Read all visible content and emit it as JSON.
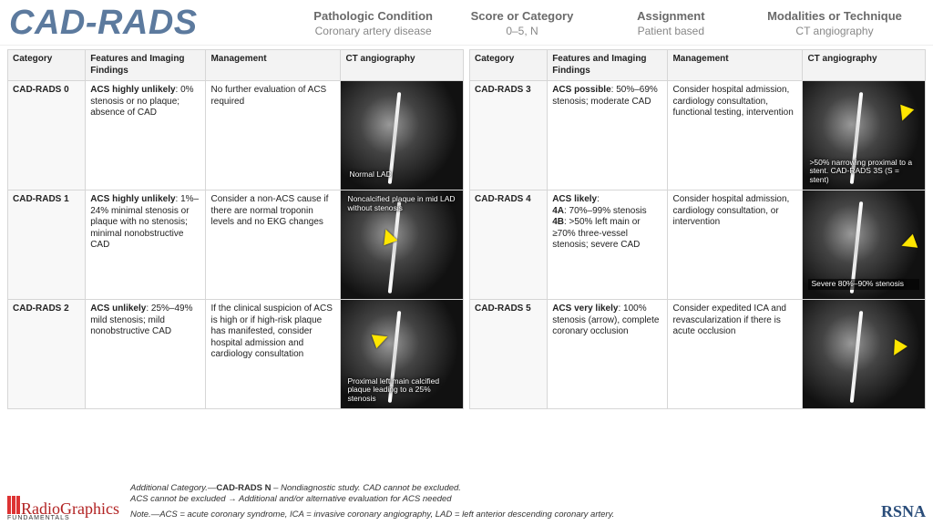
{
  "title": "CAD-RADS",
  "header": {
    "cols": [
      {
        "top": "Pathologic Condition",
        "sub": "Coronary artery disease"
      },
      {
        "top": "Score or Category",
        "sub": "0–5, N"
      },
      {
        "top": "Assignment",
        "sub": "Patient based"
      },
      {
        "top": "Modalities or Technique",
        "sub": "CT angiography"
      }
    ]
  },
  "columns": [
    "Category",
    "Features and Imaging Findings",
    "Management",
    "CT angiography"
  ],
  "left_rows": [
    {
      "cat": "CAD-RADS 0",
      "feat_b": "ACS highly unlikely",
      "feat": ": 0% stenosis or no plaque; absence of CAD",
      "mgmt": "No further evaluation of ACS required",
      "img_label": "Normal LAD",
      "label_pos": "bottom:10px;left:6px",
      "arrow_style": "display:none"
    },
    {
      "cat": "CAD-RADS 1",
      "feat_b": "ACS highly unlikely",
      "feat": ": 1%–24% minimal stenosis or plaque with no stenosis; minimal nonobstructive CAD",
      "mgmt": "Consider a non-ACS cause if there are normal troponin levels and no EKG changes",
      "img_label": "Noncalcified plaque in mid LAD without stenosis",
      "label_pos": "top:4px;left:4px;right:4px",
      "arrow_style": "top:42px;left:44px;transform:rotate(-20deg)"
    },
    {
      "cat": "CAD-RADS  2",
      "feat_b": "ACS unlikely",
      "feat": ": 25%–49% mild stenosis; mild nonobstructive CAD",
      "mgmt": "If the clinical suspicion of ACS is high or if high-risk plaque has manifested, consider hospital admission and cardiology consultation",
      "img_label": "Proximal left main calcified plaque leading to a 25% stenosis",
      "label_pos": "bottom:4px;left:4px;right:4px",
      "arrow_style": "top:35px;left:36px;transform:rotate(70deg)"
    }
  ],
  "right_rows": [
    {
      "cat": "CAD-RADS 3",
      "feat_b": "ACS possible",
      "feat": ": 50%–69% stenosis; moderate CAD",
      "mgmt": "Consider hospital admission, cardiology consultation, functional testing, intervention",
      "img_label": ">50% narrowing proximal to a stent. CAD-RADS 3S (S = stent)",
      "label_pos": "bottom:4px;left:4px;right:4px",
      "arrow_style": "top:28px;right:14px;transform:rotate(200deg)"
    },
    {
      "cat": "CAD-RADS 4",
      "feat_b": "ACS likely",
      "feat": ":\n4A: 70%–99% stenosis\n4B: >50% left main or ≥70% three-vessel stenosis; severe CAD",
      "mgmt": "Consider hospital admission, cardiology consultation, or intervention",
      "img_label": "Severe  80%–90% stenosis",
      "label_pos": "bottom:10px;left:6px;right:6px;background:rgba(0,0,0,.55)",
      "arrow_style": "top:50px;right:10px;transform:rotate(250deg)"
    },
    {
      "cat": "CAD-RADS 5",
      "feat_b": "ACS very likely",
      "feat": ": 100% stenosis (arrow), complete coronary occlusion",
      "mgmt": "Consider expedited ICA and revascularization if there is acute occlusion",
      "img_label": "",
      "label_pos": "display:none",
      "arrow_style": "top:46px;right:22px;transform:rotate(210deg)"
    }
  ],
  "footer": {
    "line1_i": "Additional Category.—",
    "line1_b": "CAD-RADS N",
    "line1": " – Nondiagnostic study. CAD cannot be excluded.",
    "line2": "ACS cannot be excluded → Additional and/or alternative evaluation for ACS needed",
    "line3": "Note.—ACS = acute coronary syndrome, ICA = invasive coronary angiography, LAD = left anterior descending coronary artery.",
    "logo_rg": "RadioGraphics",
    "logo_rg_sub": "FUNDAMENTALS",
    "logo_rsna": "RSNA"
  },
  "colors": {
    "title": "#5c7a9e",
    "arrow": "#ffe600",
    "border": "#d6d6d6"
  }
}
